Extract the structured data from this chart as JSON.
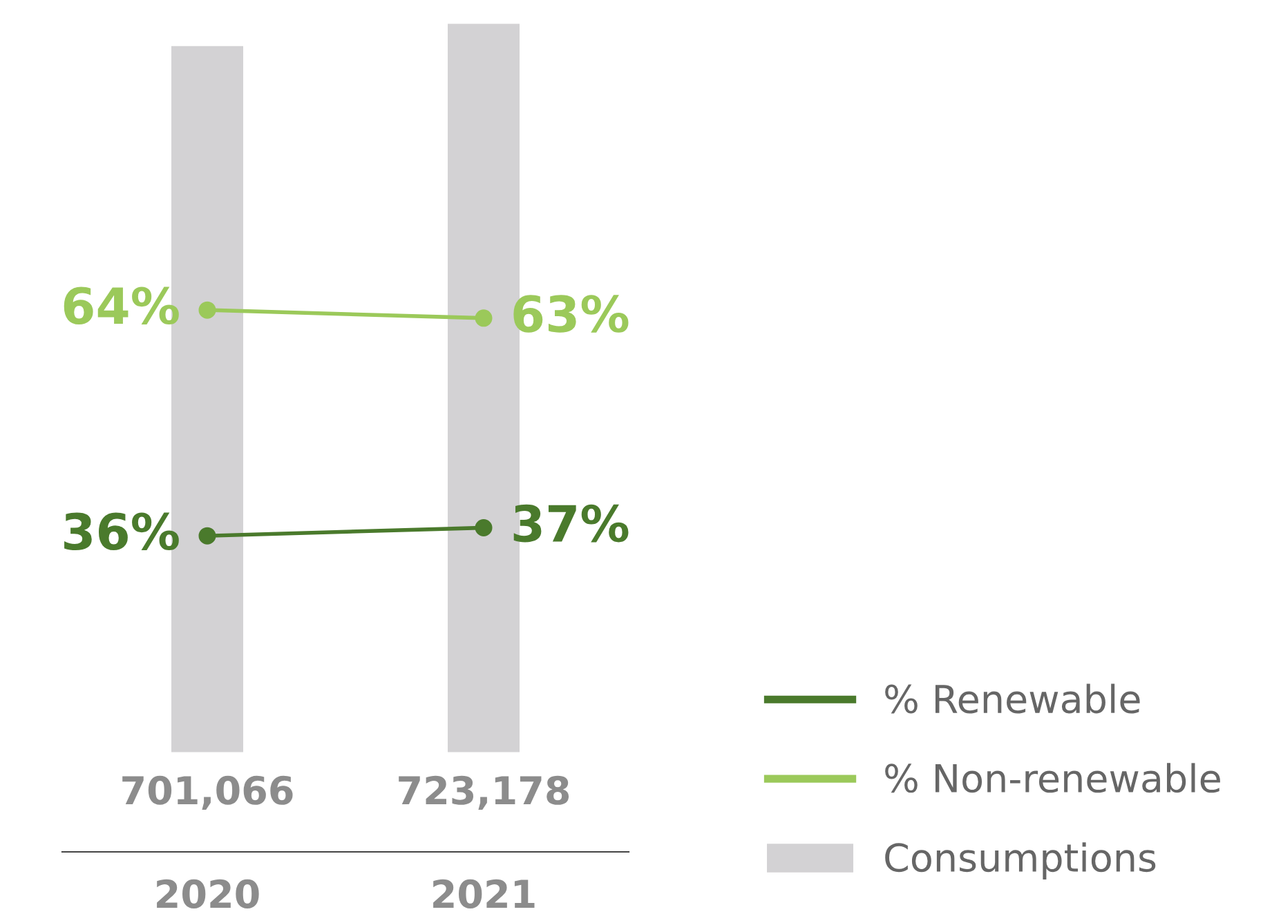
{
  "chart_data": {
    "type": "bar",
    "categories": [
      "2020",
      "2021"
    ],
    "series": [
      {
        "name": "% Renewable",
        "type": "line",
        "axis": "y2",
        "color": "#4a7a2c",
        "values": [
          36,
          37
        ],
        "value_labels": [
          "36%",
          "37%"
        ]
      },
      {
        "name": "% Non-renewable",
        "type": "line",
        "axis": "y2",
        "color": "#9bc95a",
        "values": [
          64,
          63
        ],
        "value_labels": [
          "64%",
          "63%"
        ]
      },
      {
        "name": "Consumptions",
        "color": "#d3d2d4",
        "values": [
          701066,
          723178
        ],
        "value_labels": [
          "701,066",
          "723,178"
        ]
      }
    ],
    "marker": "circle",
    "legend": "bottom right",
    "grid": false,
    "tick_labels": "x"
  }
}
